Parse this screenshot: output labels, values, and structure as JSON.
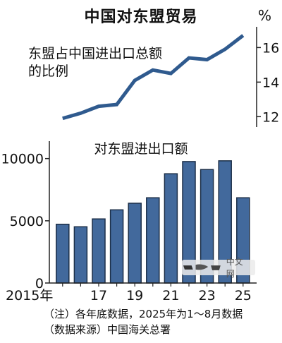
{
  "title": "中国对东盟贸易",
  "notes": {
    "line1": "（注）各年底数据，2025年为1～8月数据",
    "line2": "（数据来源）中国海关总署"
  },
  "watermark": {
    "text": "中文网"
  },
  "chart_data": [
    {
      "type": "line",
      "title": "东盟占中国进出口总额的比例",
      "title_lines": [
        "东盟占中国进出口总额",
        "的比例"
      ],
      "unit": "%",
      "x": [
        2015,
        2016,
        2017,
        2018,
        2019,
        2020,
        2021,
        2022,
        2023,
        2024,
        2025
      ],
      "values": [
        11.9,
        12.2,
        12.6,
        12.7,
        14.1,
        14.7,
        14.5,
        15.4,
        15.3,
        15.9,
        16.7
      ],
      "yticks": [
        12,
        14,
        16
      ],
      "yticks_labels": [
        "12",
        "14",
        "16"
      ],
      "ylim": [
        11.4,
        17.2
      ],
      "y_axis_side": "right",
      "color": "#2f5a8e"
    },
    {
      "type": "bar",
      "title": "对东盟进出口额",
      "categories": [
        2015,
        2016,
        2017,
        2018,
        2019,
        2020,
        2021,
        2022,
        2023,
        2024,
        2025
      ],
      "xticks_labels": [
        "2015年",
        "",
        "17",
        "",
        "19",
        "",
        "21",
        "",
        "23",
        "",
        "25"
      ],
      "values": [
        4720,
        4520,
        5150,
        5880,
        6410,
        6850,
        8780,
        9760,
        9120,
        9820,
        6850
      ],
      "yticks": [
        0,
        5000,
        10000
      ],
      "yticks_labels": [
        "0",
        "5000",
        "10000"
      ],
      "ylim": [
        0,
        11400
      ],
      "y_axis_side": "left",
      "color": "#42699c",
      "edge_color": "#1c2f48"
    }
  ]
}
